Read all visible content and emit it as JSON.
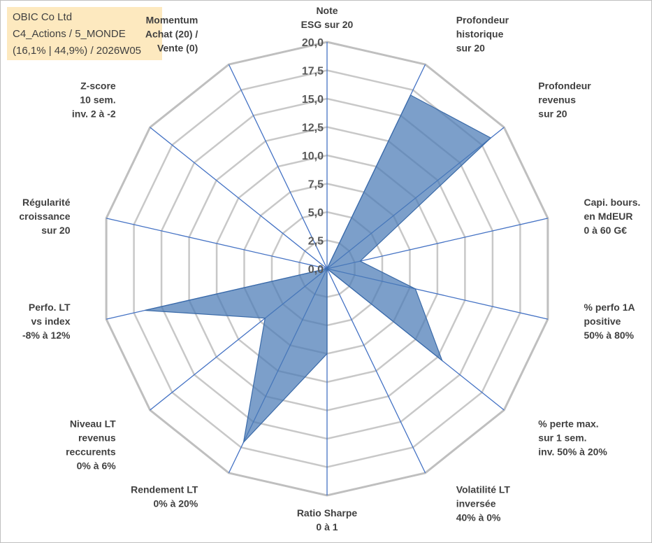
{
  "header": {
    "line1": "OBIC Co Ltd",
    "line2": "C4_Actions / 5_MONDE",
    "line3": "(16,1% | 44,9%) / 2026W05"
  },
  "chart_data": {
    "type": "radar",
    "rmin": 0,
    "rmax": 20,
    "tick_labels": [
      "0,0",
      "2,5",
      "5,0",
      "7,5",
      "10,0",
      "12,5",
      "15,0",
      "17,5",
      "20,0"
    ],
    "colors": {
      "fill": "#4a7ab5",
      "axis": "#4472c4",
      "grid": "#c8c8c8",
      "outer": "#bfbfbf"
    },
    "axes": [
      {
        "label": [
          "Note",
          "ESG sur 20"
        ],
        "value": 0
      },
      {
        "label": [
          "Profondeur",
          "historique",
          "sur 20"
        ],
        "value": 17
      },
      {
        "label": [
          "Profondeur",
          "revenus",
          "sur 20"
        ],
        "value": 18.5
      },
      {
        "label": [
          "Capi. bours.",
          "en MdEUR",
          "0 à 60 G€"
        ],
        "value": 3
      },
      {
        "label": [
          "% perfo 1A",
          "positive",
          "50% à 80%"
        ],
        "value": 8
      },
      {
        "label": [
          "% perte max.",
          "sur 1 sem.",
          "inv. 50% à 20%"
        ],
        "value": 13
      },
      {
        "label": [
          "Volatilité LT",
          "inversée",
          "40% à 0%"
        ],
        "value": 0
      },
      {
        "label": [
          "Ratio Sharpe",
          "0 à 1"
        ],
        "value": 7.5
      },
      {
        "label": [
          "Rendement LT",
          "0% à 20%"
        ],
        "value": 17
      },
      {
        "label": [
          "Niveau LT",
          "revenus",
          "reccurents",
          "0% à 6%"
        ],
        "value": 7
      },
      {
        "label": [
          "Perfo. LT",
          "vs index",
          "-8% à 12%"
        ],
        "value": 16.5
      },
      {
        "label": [
          "Régularité",
          "croissance",
          "sur 20"
        ],
        "value": 0
      },
      {
        "label": [
          "Z-score",
          "10 sem.",
          "inv. 2 à -2"
        ],
        "value": 0
      },
      {
        "label": [
          "Momentum",
          "Achat (20) /",
          "Vente (0)"
        ],
        "value": 0
      }
    ]
  }
}
